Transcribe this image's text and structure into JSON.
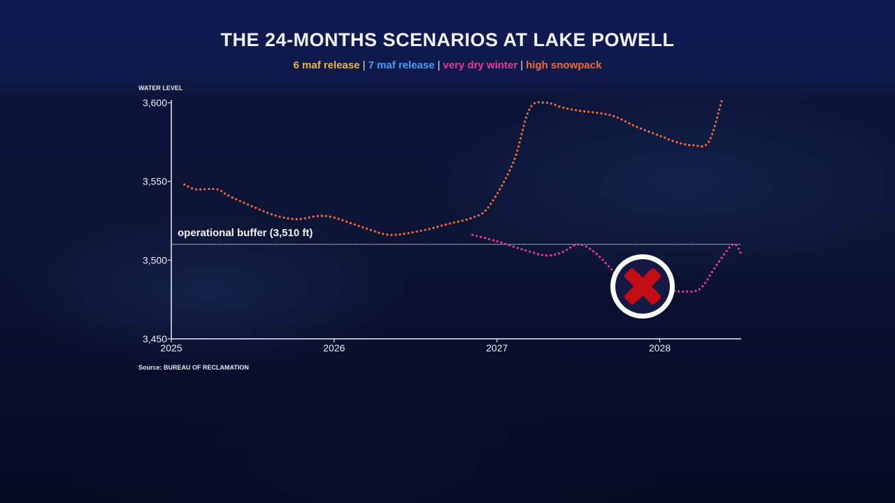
{
  "chart_data": {
    "type": "line",
    "title": "THE 24-MONTHS SCENARIOS AT LAKE POWELL",
    "ylabel": "WATER LEVEL",
    "source": "Source: BUREAU OF RECLAMATION",
    "legend_placement": "top, below title",
    "xlim": [
      2025.0,
      2028.5
    ],
    "ylim": [
      3450,
      3600
    ],
    "x_ticks": [
      2025,
      2026,
      2027,
      2028
    ],
    "x_tick_labels": [
      "2025",
      "2026",
      "2027",
      "2028"
    ],
    "y_ticks": [
      3450,
      3500,
      3550,
      3600
    ],
    "y_tick_labels": [
      "3,450",
      "3,500",
      "3,550",
      "3,600"
    ],
    "grid": false,
    "reference_line": {
      "label": "operational buffer (3,510 ft)",
      "y": 3510,
      "color": "#ffffff"
    },
    "legend": [
      {
        "name": "6 maf release",
        "color": "#f0b43c"
      },
      {
        "name": "7 maf release",
        "color": "#3fa0ff"
      },
      {
        "name": "very dry winter",
        "color": "#e8389a"
      },
      {
        "name": "high snowpack",
        "color": "#f26a3c"
      }
    ],
    "series": [
      {
        "name": "high snowpack",
        "color": "#f26a3c",
        "style": "dotted",
        "x": [
          2025.08,
          2025.15,
          2025.28,
          2025.35,
          2025.5,
          2025.65,
          2025.78,
          2025.9,
          2026.0,
          2026.2,
          2026.35,
          2026.55,
          2026.7,
          2026.85,
          2026.95,
          2027.1,
          2027.2,
          2027.3,
          2027.4,
          2027.5,
          2027.7,
          2027.85,
          2028.0,
          2028.1,
          2028.2,
          2028.3,
          2028.38
        ],
        "y": [
          3548,
          3545,
          3545,
          3541,
          3534,
          3528,
          3526,
          3528,
          3527,
          3520,
          3516,
          3519,
          3523,
          3527,
          3534,
          3562,
          3596,
          3600,
          3597,
          3595,
          3592,
          3585,
          3579,
          3575,
          3573,
          3575,
          3601
        ]
      },
      {
        "name": "very dry winter",
        "color": "#e8389a",
        "style": "dotted",
        "x": [
          2026.85,
          2027.0,
          2027.15,
          2027.3,
          2027.4,
          2027.5,
          2027.6,
          2027.75,
          2027.9,
          2028.05,
          2028.15,
          2028.25,
          2028.35,
          2028.45,
          2028.5
        ],
        "y": [
          3516,
          3512,
          3507,
          3503,
          3505,
          3510,
          3505,
          3490,
          3483,
          3481,
          3480,
          3482,
          3497,
          3510,
          3504
        ]
      }
    ]
  }
}
